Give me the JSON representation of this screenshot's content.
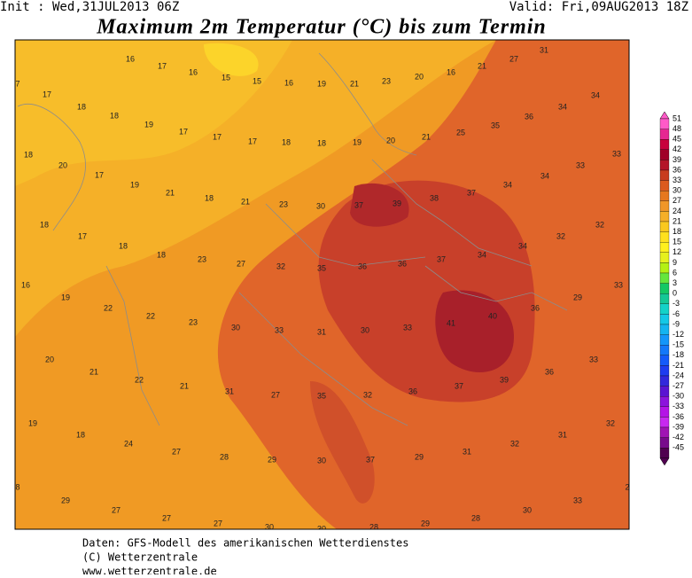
{
  "header": {
    "init": "Init : Wed,31JUL2013 06Z",
    "valid": "Valid: Fri,09AUG2013 18Z",
    "title": "Maximum 2m Temperatur (°C) bis zum Termin"
  },
  "map": {
    "labels": [
      16,
      17,
      16,
      15,
      15,
      16,
      19,
      21,
      23,
      20,
      16,
      21,
      27,
      31,
      7,
      17,
      18,
      18,
      19,
      17,
      17,
      17,
      18,
      18,
      19,
      20,
      21,
      25,
      35,
      36,
      34,
      34,
      18,
      20,
      17,
      19,
      21,
      18,
      21,
      23,
      30,
      37,
      39,
      38,
      37,
      34,
      34,
      33,
      33,
      18,
      17,
      18,
      18,
      23,
      27,
      32,
      35,
      36,
      36,
      37,
      34,
      34,
      32,
      32,
      16,
      19,
      22,
      22,
      23,
      30,
      33,
      31,
      30,
      33,
      41,
      40,
      36,
      29,
      33,
      20,
      21,
      22,
      21,
      31,
      27,
      35,
      32,
      36,
      37,
      39,
      36,
      33,
      19,
      18,
      24,
      27,
      28,
      29,
      30,
      37,
      29,
      31,
      32,
      31,
      32,
      8,
      29,
      27,
      27,
      27,
      30,
      30,
      28,
      29,
      28,
      30,
      33,
      2
    ]
  },
  "colorbar": {
    "levels": [
      51,
      48,
      45,
      42,
      39,
      36,
      33,
      30,
      27,
      24,
      21,
      18,
      15,
      12,
      9,
      6,
      3,
      0,
      -3,
      -6,
      -9,
      -12,
      -15,
      -18,
      -21,
      -24,
      -27,
      -30,
      -33,
      -36,
      -39,
      -42,
      -45
    ],
    "colors": [
      "#ff5ac8",
      "#e62891",
      "#c8003c",
      "#a00028",
      "#b41428",
      "#c83c1e",
      "#dc5a1e",
      "#e6781e",
      "#f09628",
      "#f5af28",
      "#fac81e",
      "#ffe11e",
      "#fff01e",
      "#e6f01e",
      "#b4f014",
      "#64e63c",
      "#14c864",
      "#14c896",
      "#14d2c8",
      "#14c8e6",
      "#14b4f0",
      "#1496fa",
      "#1478fa",
      "#145afa",
      "#1e3cf0",
      "#3228dc",
      "#5a14d2",
      "#8c14dc",
      "#b414e6",
      "#c828f0",
      "#a014b4",
      "#780a8c",
      "#500050"
    ]
  },
  "footer": {
    "line1": "Daten: GFS-Modell des amerikanischen Wetterdienstes",
    "line2": "(C) Wetterzentrale",
    "line3": "www.wetterzentrale.de"
  }
}
